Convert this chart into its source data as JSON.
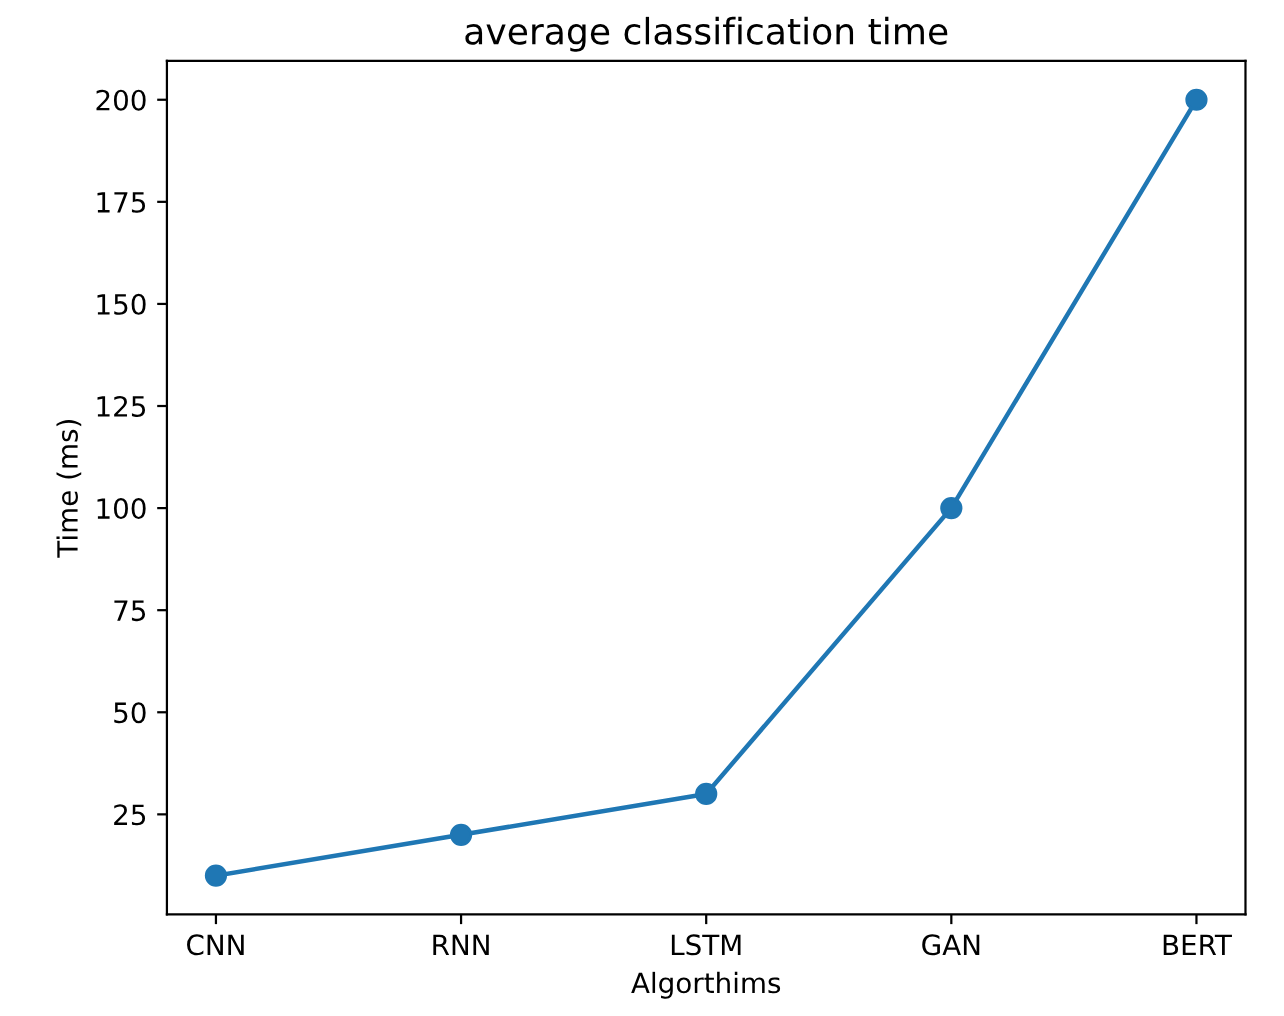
{
  "chart_data": {
    "type": "line",
    "title": "average classification time",
    "xlabel": "Algorthims",
    "ylabel": "Time (ms)",
    "categories": [
      "CNN",
      "RNN",
      "LSTM",
      "GAN",
      "BERT"
    ],
    "series": [
      {
        "color": "#1f77b4",
        "values": [
          10,
          20,
          30,
          100,
          200
        ]
      }
    ],
    "ylim": [
      0.5,
      209.5
    ],
    "yticks": [
      25,
      50,
      75,
      100,
      125,
      150,
      175,
      200
    ],
    "marker": "circle",
    "line_style": "solid",
    "grid": false,
    "legend": false
  }
}
